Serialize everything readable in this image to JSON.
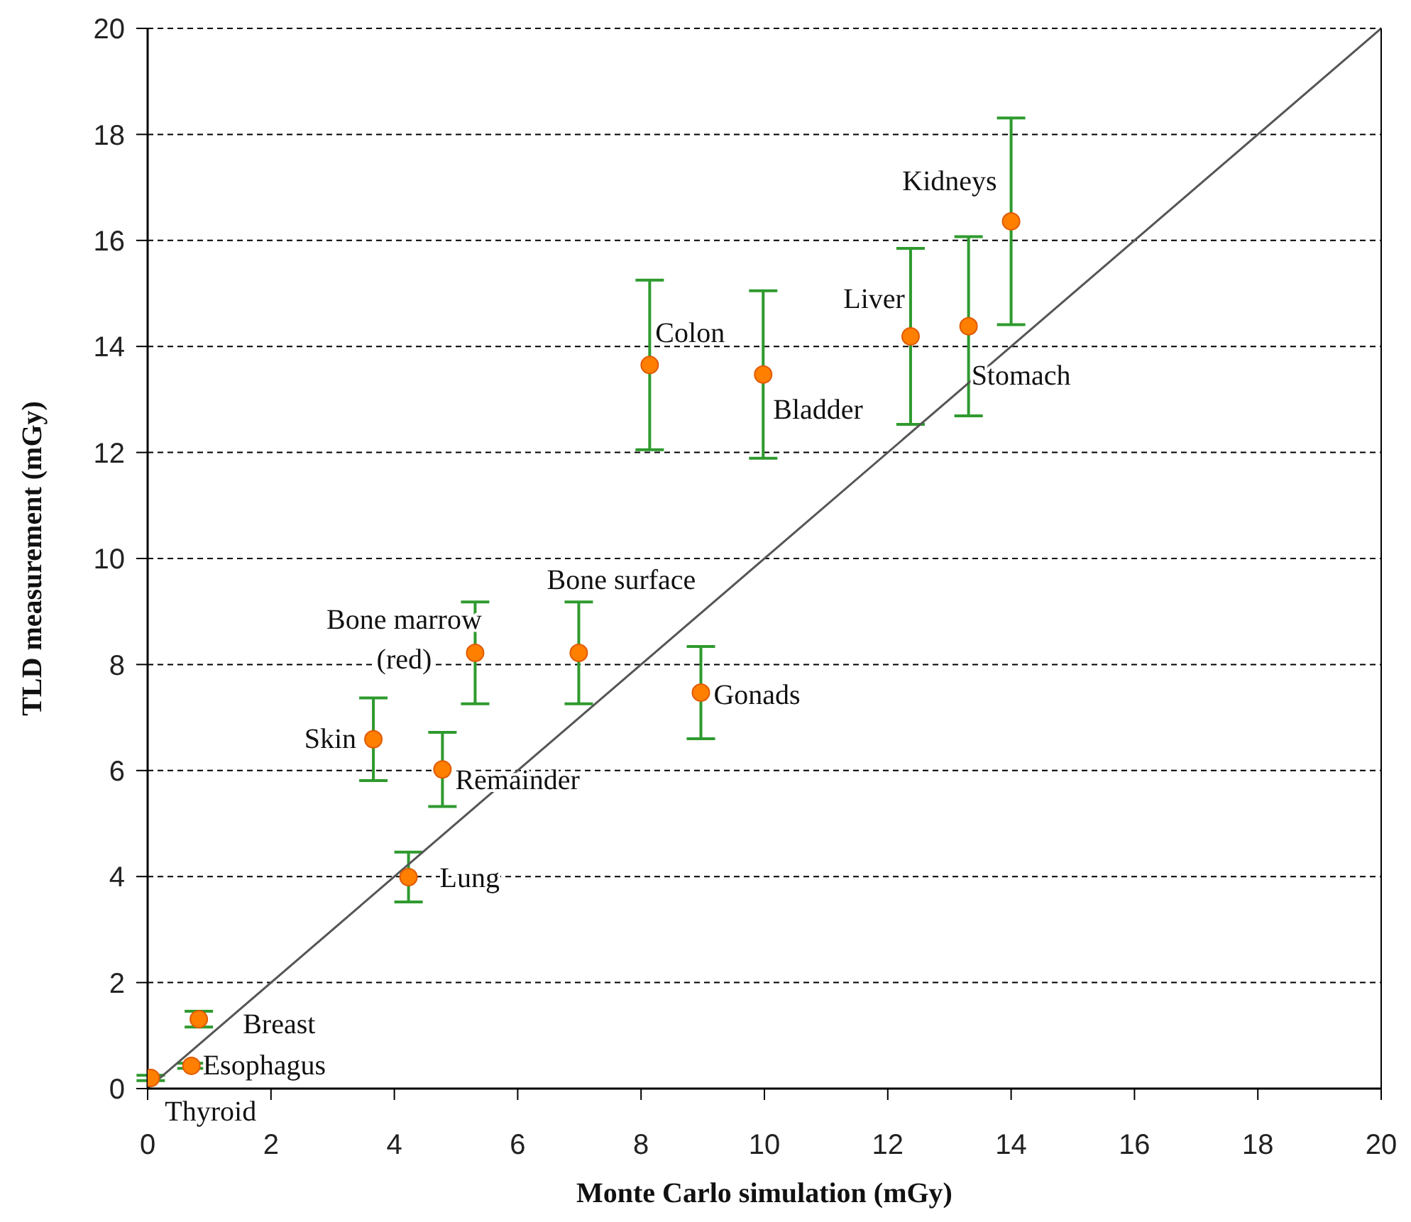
{
  "chart_data": {
    "type": "scatter",
    "xlabel": "Monte Carlo simulation (mGy)",
    "ylabel": "TLD measurement (mGy)",
    "xlim": [
      0,
      20
    ],
    "ylim": [
      0,
      20
    ],
    "xticks": [
      0,
      2,
      4,
      6,
      8,
      10,
      12,
      14,
      16,
      18,
      20
    ],
    "yticks": [
      0,
      2,
      4,
      6,
      8,
      10,
      12,
      14,
      16,
      18,
      20
    ],
    "grid": "y",
    "legend": false,
    "series": [
      {
        "color": "#ff7f00",
        "marker": "circle",
        "x": [
          0.05,
          0.71,
          0.83,
          3.66,
          4.78,
          4.23,
          5.31,
          6.99,
          8.97,
          8.14,
          9.98,
          12.37,
          13.31,
          14.0
        ],
        "values": [
          0.2,
          0.43,
          1.31,
          6.59,
          6.02,
          3.99,
          8.22,
          8.22,
          7.47,
          13.65,
          13.47,
          14.19,
          14.38,
          16.36
        ],
        "errors": [
          0.05,
          0.05,
          0.15,
          0.78,
          0.7,
          0.47,
          0.96,
          0.96,
          0.87,
          1.6,
          1.58,
          1.66,
          1.69,
          1.95
        ]
      },
      {
        "type": "line",
        "color": "#555555",
        "marker": "none",
        "line_style": "solid",
        "x": [
          0,
          20
        ],
        "values": [
          0,
          20
        ]
      }
    ],
    "annotations": [
      {
        "text": "Thyroid",
        "x": 0.05,
        "y": 0.2
      },
      {
        "text": "Esophagus",
        "x": 0.71,
        "y": 0.43
      },
      {
        "text": "Breast",
        "x": 0.83,
        "y": 1.31
      },
      {
        "text": "Skin",
        "x": 3.66,
        "y": 6.59
      },
      {
        "text": "Remainder",
        "x": 4.78,
        "y": 6.02
      },
      {
        "text": "Lung",
        "x": 4.23,
        "y": 3.99
      },
      {
        "text": "Bone marrow (red)",
        "x": 5.31,
        "y": 8.22
      },
      {
        "text": "Bone surface",
        "x": 6.99,
        "y": 8.22
      },
      {
        "text": "Gonads",
        "x": 8.97,
        "y": 7.47
      },
      {
        "text": "Colon",
        "x": 8.14,
        "y": 13.65
      },
      {
        "text": "Bladder",
        "x": 9.98,
        "y": 13.47
      },
      {
        "text": "Liver",
        "x": 12.37,
        "y": 14.19
      },
      {
        "text": "Stomach",
        "x": 13.31,
        "y": 14.38
      },
      {
        "text": "Kidneys",
        "x": 14.0,
        "y": 16.36
      }
    ]
  }
}
